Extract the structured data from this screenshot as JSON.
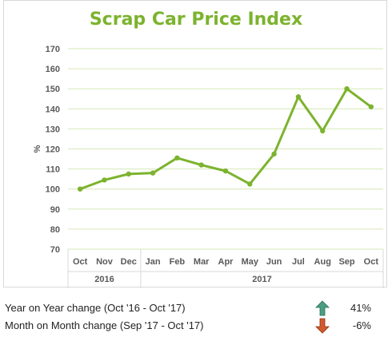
{
  "chart_data": {
    "type": "line",
    "title": "Scrap Car Price Index",
    "ylabel": "%",
    "xlabel": "",
    "ylim": [
      70,
      170
    ],
    "yticks": [
      70,
      80,
      90,
      100,
      110,
      120,
      130,
      140,
      150,
      160,
      170
    ],
    "categories": [
      "Oct",
      "Nov",
      "Dec",
      "Jan",
      "Feb",
      "Mar",
      "Apr",
      "May",
      "Jun",
      "Jul",
      "Aug",
      "Sep",
      "Oct"
    ],
    "year_groups": [
      {
        "label": "2016",
        "count": 3
      },
      {
        "label": "2017",
        "count": 10
      }
    ],
    "series": [
      {
        "values": [
          100,
          104.5,
          107.5,
          108,
          115.5,
          112,
          109,
          102.5,
          117.5,
          146,
          129,
          150,
          141
        ]
      }
    ],
    "grid": true,
    "legend": "none",
    "line_color": "#7cb32e",
    "title_color": "#7cb32e",
    "grid_color": "#d6e8b8"
  },
  "stats": {
    "yoy": {
      "label": "Year on Year change (Oct '16 - Oct '17)",
      "value": "41%",
      "direction": "up",
      "icon": "arrow-up-icon",
      "color": "#4a9e82"
    },
    "mom": {
      "label": "Month on Month change (Sep '17 - Oct '17)",
      "value": "-6%",
      "direction": "down",
      "icon": "arrow-down-icon",
      "color": "#d35a2f"
    }
  }
}
